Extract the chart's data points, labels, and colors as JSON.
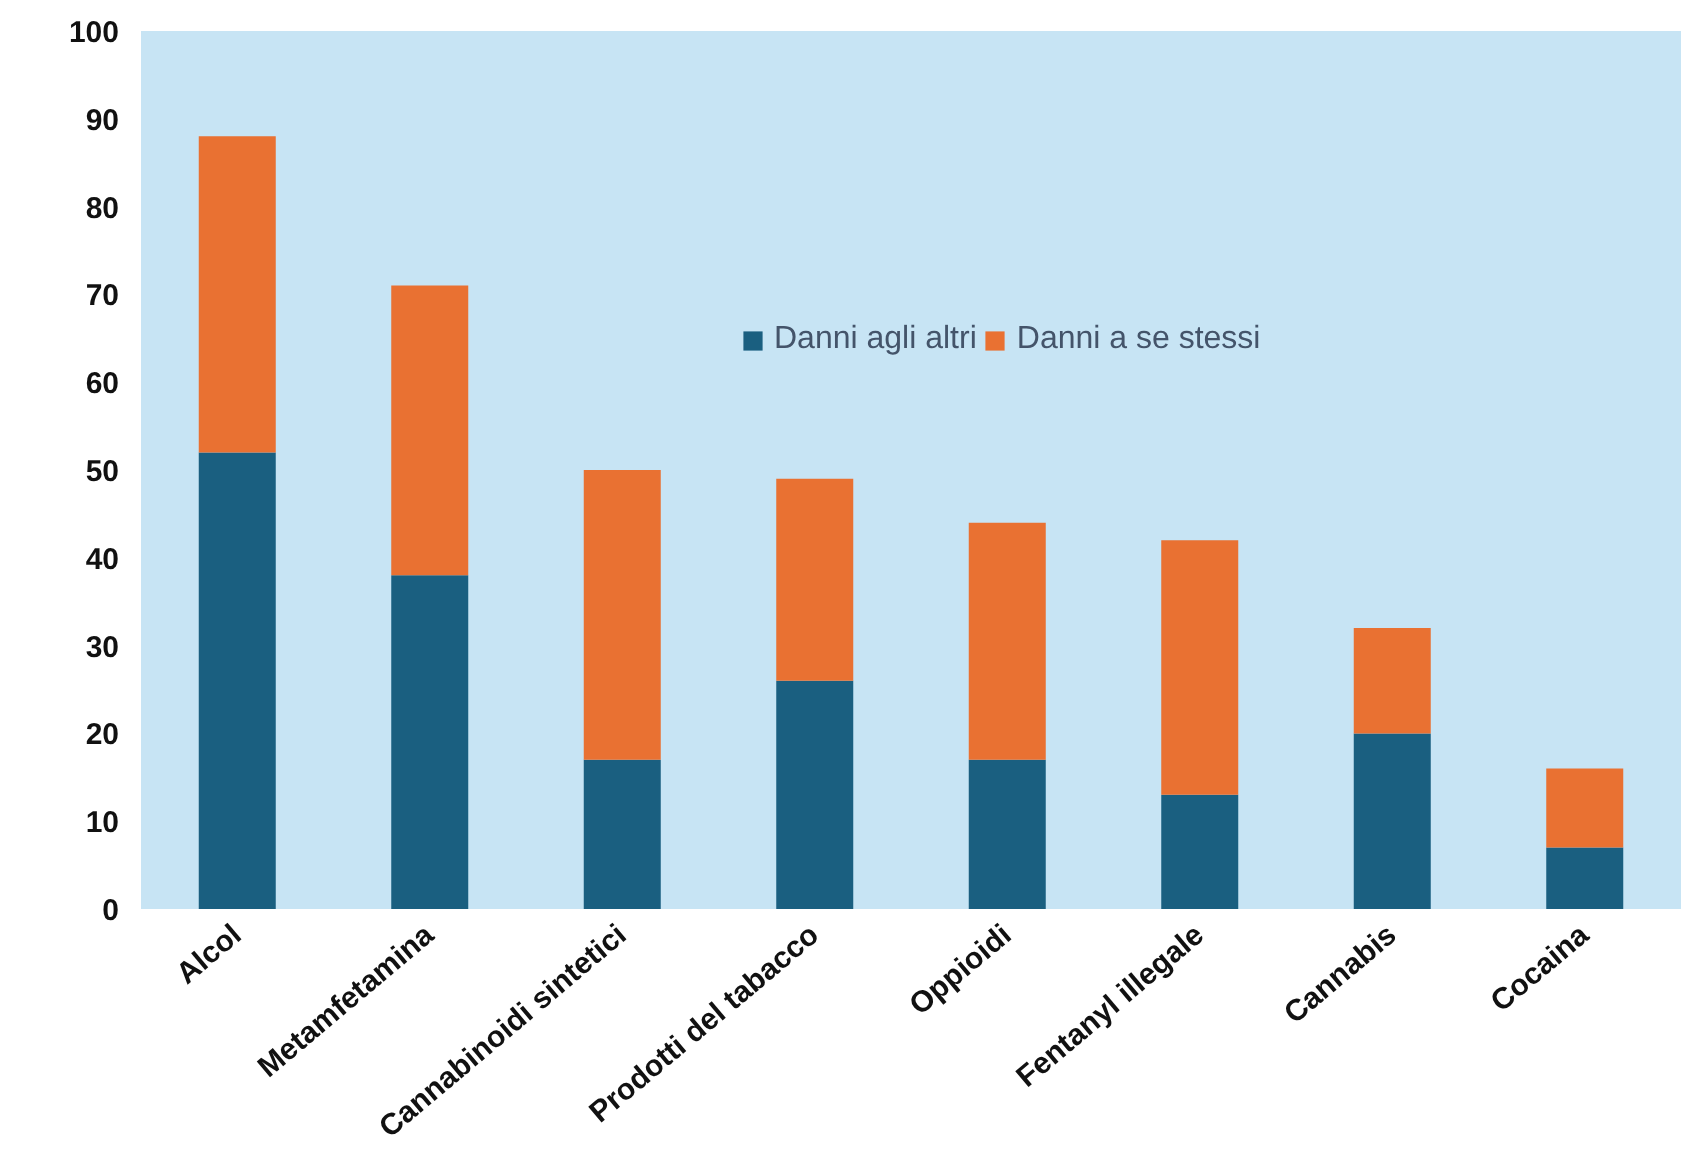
{
  "chart_data": {
    "type": "bar",
    "stacked": true,
    "categories": [
      "Alcol",
      "Metamfetamina",
      "Cannabinoidi sintetici",
      "Prodotti del tabacco",
      "Oppioidi",
      "Fentanyl illegale",
      "Cannabis",
      "Cocaina"
    ],
    "series": [
      {
        "name": "Danni agli altri",
        "color": "#1a5f80",
        "values": [
          52,
          38,
          17,
          26,
          17,
          13,
          20,
          7
        ]
      },
      {
        "name": "Danni a se stessi",
        "color": "#e97132",
        "values": [
          36,
          33,
          33,
          23,
          27,
          29,
          12,
          9
        ]
      }
    ],
    "ylim": [
      0,
      100
    ],
    "yticks": [
      0,
      10,
      20,
      30,
      40,
      50,
      60,
      70,
      80,
      90,
      100
    ],
    "grid": false,
    "legend": "top"
  }
}
